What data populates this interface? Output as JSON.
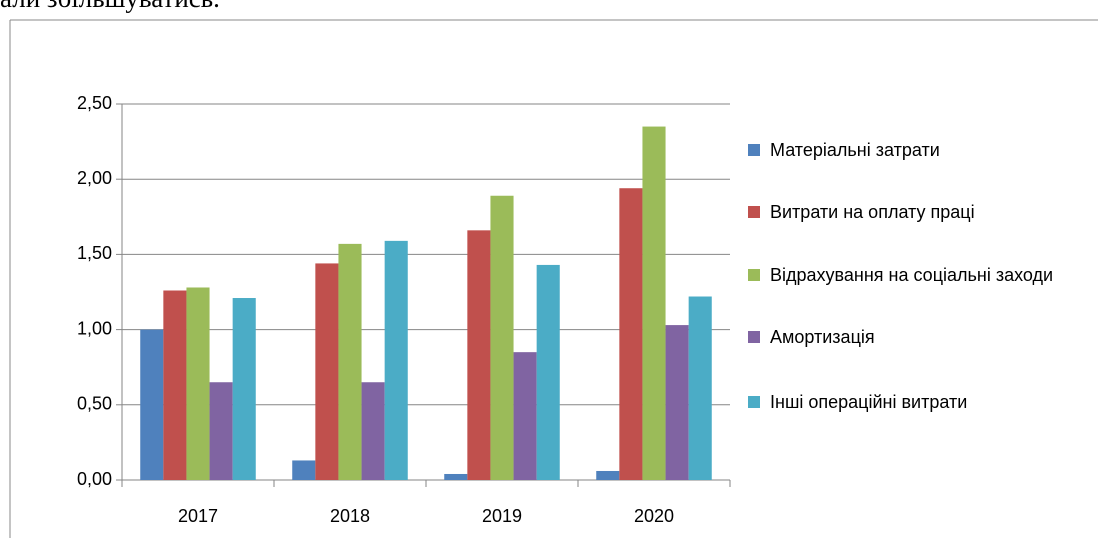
{
  "text_above": "али збільшуватись.",
  "chart_data": {
    "type": "bar",
    "categories": [
      "2017",
      "2018",
      "2019",
      "2020"
    ],
    "series": [
      {
        "name": "Матеріальні затрати",
        "color": "#4f81bd",
        "values": [
          1.0,
          0.13,
          0.04,
          0.06
        ]
      },
      {
        "name": "Витрати на оплату праці",
        "color": "#c0504d",
        "values": [
          1.26,
          1.44,
          1.66,
          1.94
        ]
      },
      {
        "name": "Відрахування на соціальні заходи",
        "color": "#9bbb59",
        "values": [
          1.28,
          1.57,
          1.89,
          2.35
        ]
      },
      {
        "name": "Амортизація",
        "color": "#8064a2",
        "values": [
          0.65,
          0.65,
          0.85,
          1.03
        ]
      },
      {
        "name": "Інші операційні витрати",
        "color": "#4bacc6",
        "values": [
          1.21,
          1.59,
          1.43,
          1.22
        ]
      }
    ],
    "ylim": [
      0,
      2.5
    ],
    "yticks": [
      {
        "value": 0,
        "label": "0,00"
      },
      {
        "value": 0.5,
        "label": "0,50"
      },
      {
        "value": 1,
        "label": "1,00"
      },
      {
        "value": 1.5,
        "label": "1,50"
      },
      {
        "value": 2,
        "label": "2,00"
      },
      {
        "value": 2.5,
        "label": "2,50"
      }
    ],
    "grid": true,
    "legend": "right"
  }
}
